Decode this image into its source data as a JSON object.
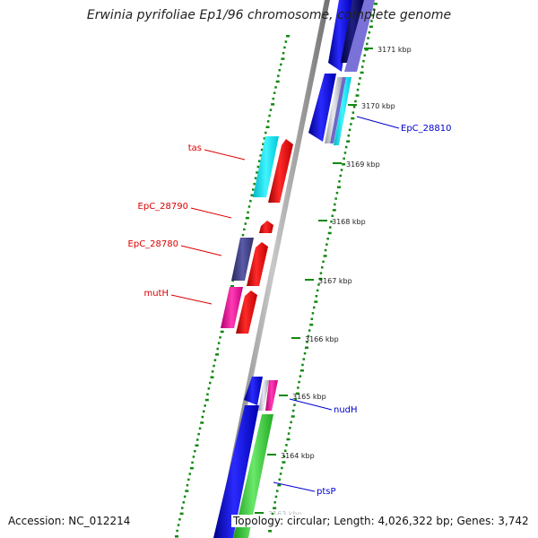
{
  "title": "Erwinia pyrifoliae Ep1/96 chromosome, complete genome",
  "accession": "Accession: NC_012214",
  "summary": "Topology: circular; Length: 4,026,322 bp; Genes: 3,742",
  "colors": {
    "forward_gene": "#ff0000",
    "reverse_gene": "#0000ee",
    "backbone": "#888888",
    "gc_ticks": "#118811",
    "label_forward": "#dd0000",
    "label_reverse": "#0000cc"
  },
  "ticks": [
    {
      "label": "3171 kbp"
    },
    {
      "label": "3170 kbp"
    },
    {
      "label": "3169 kbp"
    },
    {
      "label": "3168 kbp"
    },
    {
      "label": "3167 kbp"
    },
    {
      "label": "3166 kbp"
    },
    {
      "label": "3165 kbp"
    },
    {
      "label": "3164 kbp"
    },
    {
      "label": "3163 kbp"
    }
  ],
  "gene_labels": [
    {
      "label": "tas",
      "strand": "forward"
    },
    {
      "label": "EpC_28790",
      "strand": "forward"
    },
    {
      "label": "EpC_28780",
      "strand": "forward"
    },
    {
      "label": "mutH",
      "strand": "forward"
    },
    {
      "label": "EpC_28810",
      "strand": "reverse"
    },
    {
      "label": "nudH",
      "strand": "reverse"
    },
    {
      "label": "ptsP",
      "strand": "reverse"
    }
  ]
}
